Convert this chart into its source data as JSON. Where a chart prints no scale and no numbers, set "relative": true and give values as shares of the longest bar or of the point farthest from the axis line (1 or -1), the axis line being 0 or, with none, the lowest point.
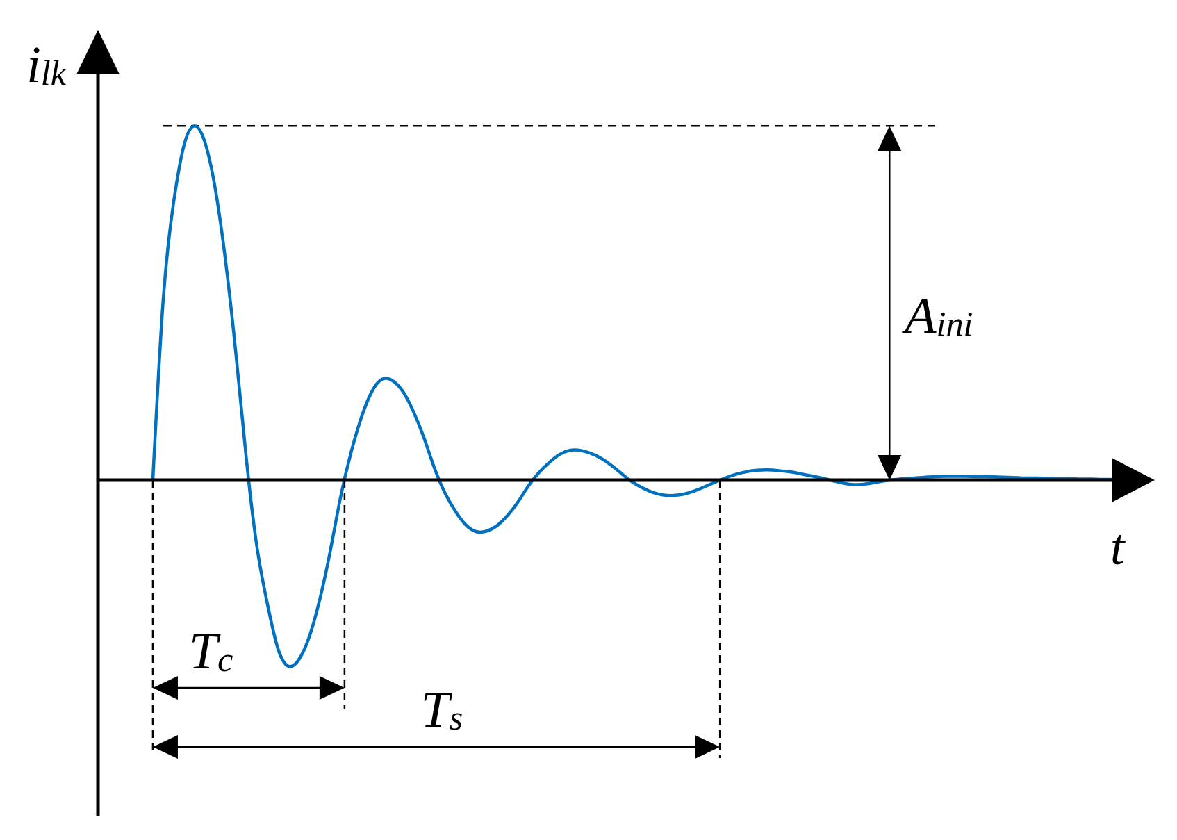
{
  "chart_data": {
    "type": "line",
    "relative": true,
    "xlabel": "t",
    "ylabel": "i$_{lk}$",
    "annotations": [
      "A$_{ini}$",
      "T$_{c}$",
      "T$_{s}$"
    ],
    "categories": [
      null,
      null,
      null,
      null,
      null,
      null,
      null,
      null,
      null,
      null,
      null,
      null,
      null,
      null,
      null,
      null,
      null,
      null,
      null,
      null,
      null,
      null,
      null,
      null,
      null,
      null,
      null,
      null,
      null,
      null,
      null,
      null,
      null,
      null,
      null,
      null,
      null,
      null,
      null,
      null,
      null,
      null,
      null,
      null,
      null,
      null,
      null,
      null,
      null,
      null,
      null,
      null,
      null,
      null,
      null,
      null,
      null,
      null,
      null,
      null,
      null,
      null,
      null,
      null,
      null,
      null,
      null,
      null,
      null,
      null,
      null,
      null,
      null,
      null,
      null,
      null,
      null,
      null,
      null,
      null,
      null,
      null,
      null,
      null,
      null,
      null,
      null,
      null,
      null,
      null,
      null,
      null,
      null
    ],
    "values": [
      0,
      0.51,
      0.785,
      0.946,
      1,
      0.954,
      0.821,
      0.614,
      0.349,
      0.053,
      -0.19,
      -0.35,
      -0.475,
      -0.525,
      -0.507,
      -0.443,
      -0.339,
      -0.204,
      -0.05,
      0.076,
      0.176,
      0.249,
      0.285,
      0.281,
      0.25,
      0.194,
      0.121,
      0.036,
      -0.034,
      -0.086,
      -0.125,
      -0.145,
      -0.144,
      -0.129,
      -0.101,
      -0.063,
      -0.018,
      0.02,
      0.049,
      0.072,
      0.084,
      0.084,
      0.076,
      0.062,
      0.042,
      0.018,
      -0.005,
      -0.022,
      -0.035,
      -0.042,
      -0.043,
      -0.039,
      -0.03,
      -0.018,
      -0.005,
      0.007,
      0.017,
      0.024,
      0.028,
      0.029,
      0.027,
      0.024,
      0.019,
      0.013,
      0.007,
      0,
      -0.007,
      -0.012,
      -0.012,
      -0.008,
      -0.003,
      0.001,
      0.004,
      0.006,
      0.008,
      0.01,
      0.011,
      0.011,
      0.011,
      0.01,
      0.01,
      0.009,
      0.008,
      0.007,
      0.006,
      0.006,
      0.005,
      0.004,
      0.004,
      0.003,
      0.003,
      0.002,
      0.002
    ],
    "color": "#0070c0",
    "ref_lines": [
      {
        "axis": "y",
        "value": 1,
        "color": "#000000",
        "line_style": "dashed"
      }
    ]
  }
}
